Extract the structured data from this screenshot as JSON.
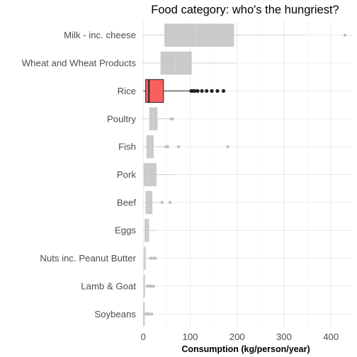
{
  "chart_data": {
    "type": "boxplot",
    "title": "Food category: who's the hungriest?",
    "xlabel": "Consumption (kg/person/year)",
    "ylabel": "",
    "xlim": [
      -5,
      445
    ],
    "xticks": [
      0,
      100,
      200,
      300,
      400
    ],
    "grid": true,
    "colors": {
      "highlight": "#f8605e",
      "muted": "#bebebe",
      "muted_line": "#c8c8c8",
      "highlight_outline": "#222222"
    },
    "highlighted_category": "Rice",
    "categories": [
      {
        "name": "Milk - inc. cheese",
        "min": 0,
        "q1": 45,
        "median": 111,
        "q3": 193,
        "max": 343,
        "outliers": [
          430
        ]
      },
      {
        "name": "Wheat and Wheat Products",
        "min": 0,
        "q1": 37,
        "median": 68,
        "q3": 103,
        "max": 197,
        "outliers": []
      },
      {
        "name": "Rice",
        "min": 0,
        "q1": 5,
        "median": 12,
        "q3": 43,
        "max": 100,
        "outliers": [
          102,
          106,
          110,
          116,
          125,
          135,
          146,
          158,
          171
        ]
      },
      {
        "name": "Poultry",
        "min": 0,
        "q1": 13,
        "median": 21,
        "q3": 30,
        "max": 55,
        "outliers": [
          59,
          62
        ]
      },
      {
        "name": "Fish",
        "min": 0,
        "q1": 7,
        "median": 14,
        "q3": 22,
        "max": 44,
        "outliers": [
          48,
          52,
          75,
          180
        ]
      },
      {
        "name": "Pork",
        "min": 0,
        "q1": 1,
        "median": 10,
        "q3": 28,
        "max": 67,
        "outliers": []
      },
      {
        "name": "Beef",
        "min": 0,
        "q1": 5,
        "median": 10,
        "q3": 19,
        "max": 36,
        "outliers": [
          40,
          57
        ]
      },
      {
        "name": "Eggs",
        "min": 0,
        "q1": 3,
        "median": 8,
        "q3": 12,
        "max": 24,
        "outliers": []
      },
      {
        "name": "Nuts inc. Peanut Butter",
        "min": 0,
        "q1": 1,
        "median": 3,
        "q3": 5,
        "max": 12,
        "outliers": [
          15,
          18,
          22,
          26
        ]
      },
      {
        "name": "Lamb & Goat",
        "min": 0,
        "q1": 0.5,
        "median": 1.5,
        "q3": 3,
        "max": 7,
        "outliers": [
          9,
          12,
          15,
          18,
          22
        ]
      },
      {
        "name": "Soybeans",
        "min": 0,
        "q1": 0,
        "median": 0.3,
        "q3": 1.5,
        "max": 4,
        "outliers": [
          5,
          7,
          9,
          12,
          18
        ]
      }
    ]
  }
}
